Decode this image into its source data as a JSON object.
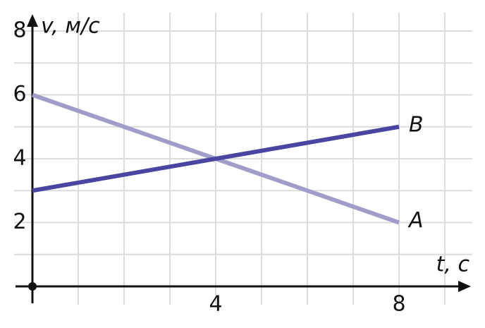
{
  "chart_data": {
    "type": "line",
    "x_label": "t, с",
    "y_label": "v, м/с",
    "x": [
      0,
      8
    ],
    "series": [
      {
        "name": "A",
        "color": "#a09ec8",
        "values": [
          6,
          2
        ]
      },
      {
        "name": "B",
        "color": "#4a45a0",
        "values": [
          3,
          5
        ]
      }
    ],
    "xlim": [
      0,
      9.5
    ],
    "ylim": [
      0,
      8.5
    ],
    "xticks": [
      4,
      8
    ],
    "yticks": [
      2,
      4,
      6,
      8
    ],
    "xgrid": [
      1,
      2,
      3,
      4,
      5,
      6,
      7,
      8,
      9
    ],
    "ygrid": [
      1,
      2,
      3,
      4,
      5,
      6,
      7,
      8
    ],
    "grid": true
  }
}
